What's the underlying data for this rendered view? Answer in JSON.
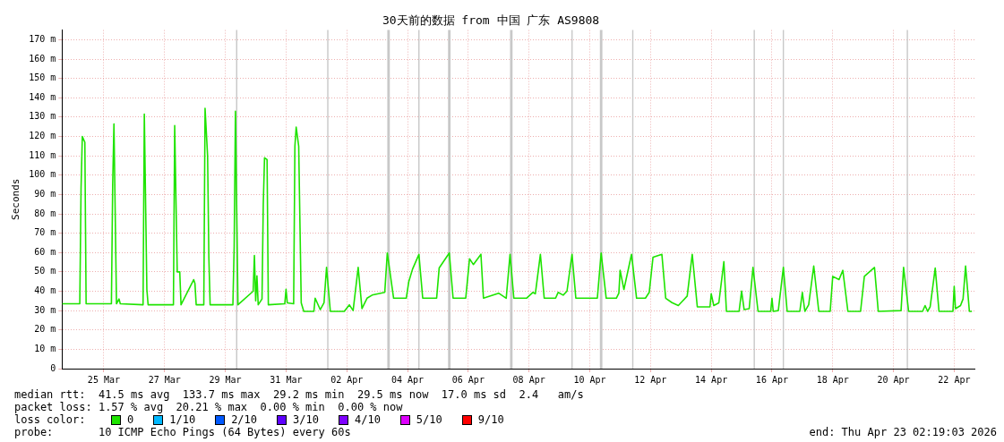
{
  "chart_data": {
    "type": "line",
    "title": "30天前的数据 from 中国 广东 AS9808",
    "ylabel": "Seconds",
    "legend_title": "loss color:",
    "legend": "bottom",
    "grid": true,
    "marker": "none",
    "line_style": "solid",
    "x": [
      "2026-03-23T15:00",
      "2026-03-24T05:00",
      "2026-03-24T06:00",
      "2026-03-24T07:00",
      "2026-03-24T09:00",
      "2026-03-24T10:00",
      "2026-03-25T06:00",
      "2026-03-25T07:00",
      "2026-03-25T08:00",
      "2026-03-25T10:00",
      "2026-03-25T12:00",
      "2026-03-25T13:00",
      "2026-03-26T07:00",
      "2026-03-26T08:00",
      "2026-03-26T10:00",
      "2026-03-26T11:00",
      "2026-03-27T07:00",
      "2026-03-27T08:00",
      "2026-03-27T10:00",
      "2026-03-27T12:00",
      "2026-03-27T13:00",
      "2026-03-27T23:00",
      "2026-03-28T00:00",
      "2026-03-28T01:00",
      "2026-03-28T07:00",
      "2026-03-28T08:00",
      "2026-03-28T10:00",
      "2026-03-28T11:00",
      "2026-03-28T12:00",
      "2026-03-29T06:00",
      "2026-03-29T07:00",
      "2026-03-29T08:00",
      "2026-03-29T10:00",
      "2026-03-29T22:00",
      "2026-03-29T23:00",
      "2026-03-30T00:00",
      "2026-03-30T01:00",
      "2026-03-30T02:00",
      "2026-03-30T05:00",
      "2026-03-30T06:00",
      "2026-03-30T07:00",
      "2026-03-30T09:00",
      "2026-03-30T10:00",
      "2026-03-30T23:00",
      "2026-03-31T00:00",
      "2026-03-31T01:00",
      "2026-03-31T06:00",
      "2026-03-31T07:00",
      "2026-03-31T08:00",
      "2026-03-31T10:00",
      "2026-03-31T12:00",
      "2026-03-31T14:00",
      "2026-03-31T22:00",
      "2026-03-31T23:00",
      "2026-04-01T03:00",
      "2026-04-01T06:00",
      "2026-04-01T08:00",
      "2026-04-01T11:00",
      "2026-04-01T22:00",
      "2026-04-02T02:00",
      "2026-04-02T05:00",
      "2026-04-02T09:00",
      "2026-04-02T12:00",
      "2026-04-02T16:00",
      "2026-04-02T20:00",
      "2026-04-03T06:00",
      "2026-04-03T08:00",
      "2026-04-03T13:00",
      "2026-04-03T23:00",
      "2026-04-04T01:00",
      "2026-04-04T04:00",
      "2026-04-04T09:00",
      "2026-04-04T12:00",
      "2026-04-04T23:00",
      "2026-04-05T01:00",
      "2026-04-05T09:00",
      "2026-04-05T12:00",
      "2026-04-05T22:00",
      "2026-04-06T01:00",
      "2026-04-06T04:00",
      "2026-04-06T10:00",
      "2026-04-06T12:00",
      "2026-04-07T00:00",
      "2026-04-07T06:00",
      "2026-04-07T09:00",
      "2026-04-07T12:00",
      "2026-04-07T22:00",
      "2026-04-08T03:00",
      "2026-04-08T05:00",
      "2026-04-08T09:00",
      "2026-04-08T12:00",
      "2026-04-08T21:00",
      "2026-04-08T23:00",
      "2026-04-09T03:00",
      "2026-04-09T06:00",
      "2026-04-09T10:00",
      "2026-04-09T13:00",
      "2026-04-10T06:00",
      "2026-04-10T09:00",
      "2026-04-10T13:00",
      "2026-04-10T21:00",
      "2026-04-10T23:00",
      "2026-04-11T00:00",
      "2026-04-11T03:00",
      "2026-04-11T09:00",
      "2026-04-11T13:00",
      "2026-04-11T20:00",
      "2026-04-11T23:00",
      "2026-04-12T02:00",
      "2026-04-12T09:00",
      "2026-04-12T12:00",
      "2026-04-12T17:00",
      "2026-04-12T22:00",
      "2026-04-13T05:00",
      "2026-04-13T09:00",
      "2026-04-13T13:00",
      "2026-04-13T23:00",
      "2026-04-14T00:00",
      "2026-04-14T02:00",
      "2026-04-14T06:00",
      "2026-04-14T10:00",
      "2026-04-14T12:00",
      "2026-04-14T22:00",
      "2026-04-15T00:00",
      "2026-04-15T02:00",
      "2026-04-15T06:00",
      "2026-04-15T09:00",
      "2026-04-15T13:00",
      "2026-04-15T23:00",
      "2026-04-16T00:00",
      "2026-04-16T01:00",
      "2026-04-16T05:00",
      "2026-04-16T09:00",
      "2026-04-16T12:00",
      "2026-04-16T22:00",
      "2026-04-17T00:00",
      "2026-04-17T02:00",
      "2026-04-17T05:00",
      "2026-04-17T09:00",
      "2026-04-17T13:00",
      "2026-04-17T22:00",
      "2026-04-18T00:00",
      "2026-04-18T05:00",
      "2026-04-18T08:00",
      "2026-04-18T12:00",
      "2026-04-18T22:00",
      "2026-04-19T01:00",
      "2026-04-19T09:00",
      "2026-04-19T12:00",
      "2026-04-20T06:00",
      "2026-04-20T08:00",
      "2026-04-20T12:00",
      "2026-04-20T23:00",
      "2026-04-21T01:00",
      "2026-04-21T03:00",
      "2026-04-21T05:00",
      "2026-04-21T09:00",
      "2026-04-21T12:00",
      "2026-04-21T23:00",
      "2026-04-22T00:00",
      "2026-04-22T01:00",
      "2026-04-22T05:00",
      "2026-04-22T07:00",
      "2026-04-22T09:00",
      "2026-04-22T12:00",
      "2026-04-22T14:00"
    ],
    "series": [
      {
        "name": "0",
        "color": "#1ee400",
        "values": [
          33.5,
          33.5,
          93,
          120,
          117,
          33.5,
          33.5,
          95,
          126.5,
          33.5,
          36,
          33.5,
          33,
          131.6,
          41,
          33,
          33,
          125.6,
          50,
          50,
          33,
          46,
          44,
          33,
          33,
          134.6,
          110,
          57.6,
          33,
          33,
          63,
          133,
          33,
          40,
          58.5,
          35,
          48,
          33,
          36,
          85,
          109,
          108,
          33,
          33.5,
          41,
          34,
          33.5,
          115,
          124.8,
          115,
          34,
          29.6,
          29.6,
          36.4,
          30.5,
          34,
          52.3,
          29.6,
          29.6,
          33,
          30,
          52.3,
          31,
          36.4,
          38,
          39.4,
          59.8,
          36.4,
          36.4,
          45,
          51.5,
          59,
          36.4,
          36.4,
          52,
          59.8,
          36.4,
          36.4,
          56.8,
          53.8,
          59.1,
          36.4,
          39,
          36.4,
          59.1,
          36.4,
          36.4,
          39.4,
          38.7,
          59.1,
          36.4,
          36.4,
          39.4,
          38,
          40,
          59.1,
          36.4,
          36.4,
          59.8,
          36.4,
          36.4,
          39,
          50.8,
          40.9,
          59.1,
          36.4,
          36.4,
          39.4,
          57.6,
          59.1,
          36.4,
          34.1,
          32.6,
          37.5,
          59.1,
          31.9,
          31.9,
          38.7,
          32.6,
          34,
          55.3,
          29.6,
          29.6,
          40.1,
          30.5,
          31,
          52.3,
          29.6,
          29.6,
          36.4,
          29.6,
          30,
          52.3,
          29.6,
          29.6,
          39.4,
          29.6,
          33,
          53,
          29.6,
          29.6,
          47.7,
          46,
          50.8,
          29.6,
          29.6,
          47.7,
          52.3,
          29.6,
          30,
          52.3,
          29.6,
          29.6,
          32.6,
          29.6,
          32,
          52,
          29.6,
          29.6,
          42.5,
          31,
          32.6,
          36,
          53,
          29.6,
          29.6
        ]
      },
      {
        "name": "1/10",
        "color": "#00b8ff",
        "values": [
          null,
          null,
          null,
          null,
          null,
          null,
          null,
          null,
          null,
          null,
          null,
          null,
          null,
          null,
          null,
          null,
          null,
          null,
          null,
          null,
          null,
          null,
          null,
          null,
          null,
          null,
          null,
          null,
          null,
          null,
          null,
          null,
          null,
          null,
          null,
          null,
          null,
          null,
          null,
          null,
          null,
          null,
          null,
          null,
          null,
          null,
          null,
          null,
          null,
          null,
          null,
          null,
          null,
          null,
          null,
          null,
          null,
          null,
          null,
          null,
          null,
          null,
          null,
          null,
          null,
          null,
          null,
          null,
          null,
          null,
          null,
          null,
          null,
          null,
          null,
          null,
          null,
          null,
          null,
          null,
          null,
          null,
          null,
          null,
          null,
          null,
          null,
          null,
          null,
          null,
          null,
          null,
          null,
          null,
          null,
          null,
          null,
          null,
          null,
          null,
          null,
          null,
          null,
          null,
          null,
          null,
          null,
          null,
          null,
          null,
          null,
          null,
          null,
          null,
          null,
          null,
          null,
          null,
          null,
          null,
          null,
          null,
          null,
          null,
          null,
          null,
          null,
          null,
          null,
          null,
          null,
          null,
          null,
          null,
          null,
          null,
          null,
          null,
          null,
          null,
          null,
          null,
          null,
          null,
          null,
          null,
          null,
          null,
          null,
          null,
          null,
          null,
          null,
          null,
          null,
          null,
          null,
          null,
          null,
          null,
          null,
          null,
          null,
          null,
          null,
          null
        ]
      },
      {
        "name": "2/10",
        "color": "#0059ff",
        "values": [
          null,
          null,
          null,
          null,
          null,
          null,
          null,
          null,
          null,
          null,
          null,
          null,
          null,
          null,
          null,
          null,
          null,
          null,
          null,
          null,
          null,
          null,
          null,
          null,
          null,
          null,
          null,
          null,
          null,
          null,
          null,
          null,
          null,
          null,
          null,
          null,
          null,
          null,
          null,
          null,
          null,
          null,
          null,
          null,
          null,
          null,
          null,
          null,
          null,
          null,
          null,
          null,
          null,
          null,
          null,
          null,
          null,
          null,
          null,
          null,
          null,
          null,
          null,
          null,
          null,
          null,
          null,
          null,
          null,
          null,
          null,
          null,
          null,
          null,
          null,
          null,
          null,
          null,
          null,
          null,
          null,
          null,
          null,
          null,
          null,
          null,
          null,
          null,
          null,
          null,
          null,
          null,
          null,
          null,
          null,
          null,
          null,
          null,
          null,
          null,
          null,
          null,
          null,
          null,
          null,
          null,
          null,
          null,
          null,
          null,
          null,
          null,
          null,
          null,
          null,
          null,
          null,
          null,
          null,
          null,
          null,
          null,
          null,
          null,
          null,
          null,
          null,
          null,
          null,
          null,
          null,
          null,
          null,
          null,
          null,
          null,
          null,
          null,
          null,
          null,
          null,
          null,
          null,
          null,
          null,
          null,
          null,
          null,
          null,
          null,
          null,
          null,
          null,
          null,
          null,
          null,
          null,
          null,
          null,
          null,
          null,
          null,
          null,
          null,
          null,
          null
        ]
      },
      {
        "name": "3/10",
        "color": "#5e00ff",
        "values": [
          null,
          null,
          null,
          null,
          null,
          null,
          null,
          null,
          null,
          null,
          null,
          null,
          null,
          null,
          null,
          null,
          null,
          null,
          null,
          null,
          null,
          null,
          null,
          null,
          null,
          null,
          null,
          null,
          null,
          null,
          null,
          null,
          null,
          null,
          null,
          null,
          null,
          null,
          null,
          null,
          null,
          null,
          null,
          null,
          null,
          null,
          null,
          null,
          null,
          null,
          null,
          null,
          null,
          null,
          null,
          null,
          null,
          null,
          null,
          null,
          null,
          null,
          null,
          null,
          null,
          null,
          null,
          null,
          null,
          null,
          null,
          null,
          null,
          null,
          null,
          null,
          null,
          null,
          null,
          null,
          null,
          null,
          null,
          null,
          null,
          null,
          null,
          null,
          null,
          null,
          null,
          null,
          null,
          null,
          null,
          null,
          null,
          null,
          null,
          null,
          null,
          null,
          null,
          null,
          null,
          null,
          null,
          null,
          null,
          null,
          null,
          null,
          null,
          null,
          null,
          null,
          null,
          null,
          null,
          null,
          null,
          null,
          null,
          null,
          null,
          null,
          null,
          null,
          null,
          null,
          null,
          null,
          null,
          null,
          null,
          null,
          null,
          null,
          null,
          null,
          null,
          null,
          null,
          null,
          null,
          null,
          null,
          null,
          null,
          null,
          null,
          null,
          null,
          null,
          null,
          null,
          null,
          null,
          null,
          null,
          null,
          null,
          null,
          null,
          null,
          null
        ]
      },
      {
        "name": "4/10",
        "color": "#7e00ff",
        "values": [
          null,
          null,
          null,
          null,
          null,
          null,
          null,
          null,
          null,
          null,
          null,
          null,
          null,
          null,
          null,
          null,
          null,
          null,
          null,
          null,
          null,
          null,
          null,
          null,
          null,
          null,
          null,
          null,
          null,
          null,
          null,
          null,
          null,
          null,
          null,
          null,
          null,
          null,
          null,
          null,
          null,
          null,
          null,
          null,
          null,
          null,
          null,
          null,
          null,
          null,
          null,
          null,
          null,
          null,
          null,
          null,
          null,
          null,
          null,
          null,
          null,
          null,
          null,
          null,
          null,
          null,
          null,
          null,
          null,
          null,
          null,
          null,
          null,
          null,
          null,
          null,
          null,
          null,
          null,
          null,
          null,
          null,
          null,
          null,
          null,
          null,
          null,
          null,
          null,
          null,
          null,
          null,
          null,
          null,
          null,
          null,
          null,
          null,
          null,
          null,
          null,
          null,
          null,
          null,
          null,
          null,
          null,
          null,
          null,
          null,
          null,
          null,
          null,
          null,
          null,
          null,
          null,
          null,
          null,
          null,
          null,
          null,
          null,
          null,
          null,
          null,
          null,
          null,
          null,
          null,
          null,
          null,
          null,
          null,
          null,
          null,
          null,
          null,
          null,
          null,
          null,
          null,
          null,
          null,
          null,
          null,
          null,
          null,
          null,
          null,
          null,
          null,
          null,
          null,
          null,
          null,
          null,
          null,
          null,
          null,
          null,
          null,
          null,
          null,
          null,
          null
        ]
      },
      {
        "name": "5/10",
        "color": "#dd00ff",
        "values": [
          null,
          null,
          null,
          null,
          null,
          null,
          null,
          null,
          null,
          null,
          null,
          null,
          null,
          null,
          null,
          null,
          null,
          null,
          null,
          null,
          null,
          null,
          null,
          null,
          null,
          null,
          null,
          null,
          null,
          null,
          null,
          null,
          null,
          null,
          null,
          null,
          null,
          null,
          null,
          null,
          null,
          null,
          null,
          null,
          null,
          null,
          null,
          null,
          null,
          null,
          null,
          null,
          null,
          null,
          null,
          null,
          null,
          null,
          null,
          null,
          null,
          null,
          null,
          null,
          null,
          null,
          null,
          null,
          null,
          null,
          null,
          null,
          null,
          null,
          null,
          null,
          null,
          null,
          null,
          null,
          null,
          null,
          null,
          null,
          null,
          null,
          null,
          null,
          null,
          null,
          null,
          null,
          null,
          null,
          null,
          null,
          null,
          null,
          null,
          null,
          null,
          null,
          null,
          null,
          null,
          null,
          null,
          null,
          null,
          null,
          null,
          null,
          null,
          null,
          null,
          null,
          null,
          null,
          null,
          null,
          null,
          null,
          null,
          null,
          null,
          null,
          null,
          null,
          null,
          null,
          null,
          null,
          null,
          null,
          null,
          null,
          null,
          null,
          null,
          null,
          null,
          null,
          null,
          null,
          null,
          null,
          null,
          null,
          null,
          null,
          null,
          null,
          null,
          null,
          null,
          null,
          null,
          null,
          null,
          null,
          null,
          null,
          null,
          null,
          null,
          null
        ]
      },
      {
        "name": "9/10",
        "color": "#ff0000",
        "values": [
          null,
          null,
          null,
          null,
          null,
          null,
          null,
          null,
          null,
          null,
          null,
          null,
          null,
          null,
          null,
          null,
          null,
          null,
          null,
          null,
          null,
          null,
          null,
          null,
          null,
          null,
          null,
          null,
          null,
          null,
          null,
          null,
          null,
          null,
          null,
          null,
          null,
          null,
          null,
          null,
          null,
          null,
          null,
          null,
          null,
          null,
          null,
          null,
          null,
          null,
          null,
          null,
          null,
          null,
          null,
          null,
          null,
          null,
          null,
          null,
          null,
          null,
          null,
          null,
          null,
          null,
          null,
          null,
          null,
          null,
          null,
          null,
          null,
          null,
          null,
          null,
          null,
          null,
          null,
          null,
          null,
          null,
          null,
          null,
          null,
          null,
          null,
          null,
          null,
          null,
          null,
          null,
          null,
          null,
          null,
          null,
          null,
          null,
          null,
          null,
          null,
          null,
          null,
          null,
          null,
          null,
          null,
          null,
          null,
          null,
          null,
          null,
          null,
          null,
          null,
          null,
          null,
          null,
          null,
          null,
          null,
          null,
          null,
          null,
          null,
          null,
          null,
          null,
          null,
          null,
          null,
          null,
          null,
          null,
          null,
          null,
          null,
          null,
          null,
          null,
          null,
          null,
          null,
          null,
          null,
          null,
          null,
          null,
          null,
          null,
          null,
          null,
          null,
          null,
          null,
          null,
          null,
          null,
          null,
          null,
          null,
          null,
          null,
          null,
          null,
          null
        ]
      }
    ],
    "bands": [
      {
        "axis": "x",
        "from": "2026-03-29T08:30",
        "to": "2026-03-29T09:30",
        "color": "#c8c8c8"
      },
      {
        "axis": "x",
        "from": "2026-04-01T08:30",
        "to": "2026-04-01T09:30",
        "color": "#c8c8c8"
      },
      {
        "axis": "x",
        "from": "2026-04-03T08:00",
        "to": "2026-04-03T10:00",
        "color": "#c8c8c8"
      },
      {
        "axis": "x",
        "from": "2026-04-04T08:30",
        "to": "2026-04-04T09:30",
        "color": "#c8c8c8"
      },
      {
        "axis": "x",
        "from": "2026-04-05T08:00",
        "to": "2026-04-05T10:00",
        "color": "#c8c8c8"
      },
      {
        "axis": "x",
        "from": "2026-04-07T09:00",
        "to": "2026-04-07T11:00",
        "color": "#c8c8c8"
      },
      {
        "axis": "x",
        "from": "2026-04-09T09:30",
        "to": "2026-04-09T10:30",
        "color": "#c8c8c8"
      },
      {
        "axis": "x",
        "from": "2026-04-10T08:00",
        "to": "2026-04-10T10:00",
        "color": "#c8c8c8"
      },
      {
        "axis": "x",
        "from": "2026-04-11T09:30",
        "to": "2026-04-11T10:30",
        "color": "#c8c8c8"
      },
      {
        "axis": "x",
        "from": "2026-04-15T09:30",
        "to": "2026-04-15T10:30",
        "color": "#c8c8c8"
      },
      {
        "axis": "x",
        "from": "2026-04-16T08:30",
        "to": "2026-04-16T09:30",
        "color": "#c8c8c8"
      },
      {
        "axis": "x",
        "from": "2026-04-20T10:30",
        "to": "2026-04-20T11:30",
        "color": "#c8c8c8"
      }
    ],
    "xlim": [
      "2026-03-23T15:00",
      "2026-04-22T16:00"
    ],
    "xticks": [
      {
        "value": "2026-03-25",
        "label": "25 Mar"
      },
      {
        "value": "2026-03-27",
        "label": "27 Mar"
      },
      {
        "value": "2026-03-29",
        "label": "29 Mar"
      },
      {
        "value": "2026-03-31",
        "label": "31 Mar"
      },
      {
        "value": "2026-04-02",
        "label": "02 Apr"
      },
      {
        "value": "2026-04-04",
        "label": "04 Apr"
      },
      {
        "value": "2026-04-06",
        "label": "06 Apr"
      },
      {
        "value": "2026-04-08",
        "label": "08 Apr"
      },
      {
        "value": "2026-04-10",
        "label": "10 Apr"
      },
      {
        "value": "2026-04-12",
        "label": "12 Apr"
      },
      {
        "value": "2026-04-14",
        "label": "14 Apr"
      },
      {
        "value": "2026-04-16",
        "label": "16 Apr"
      },
      {
        "value": "2026-04-18",
        "label": "18 Apr"
      },
      {
        "value": "2026-04-20",
        "label": "20 Apr"
      },
      {
        "value": "2026-04-22",
        "label": "22 Apr"
      }
    ],
    "ylim": [
      0,
      175
    ],
    "yticks": [
      0,
      {
        "value": 10,
        "label": "10 m"
      },
      {
        "value": 20,
        "label": "20 m"
      },
      {
        "value": 30,
        "label": "30 m"
      },
      {
        "value": 40,
        "label": "40 m"
      },
      {
        "value": 50,
        "label": "50 m"
      },
      {
        "value": 60,
        "label": "60 m"
      },
      {
        "value": 70,
        "label": "70 m"
      },
      {
        "value": 80,
        "label": "80 m"
      },
      {
        "value": 90,
        "label": "90 m"
      },
      {
        "value": 100,
        "label": "100 m"
      },
      {
        "value": 110,
        "label": "110 m"
      },
      {
        "value": 120,
        "label": "120 m"
      },
      {
        "value": 130,
        "label": "130 m"
      },
      {
        "value": 140,
        "label": "140 m"
      },
      {
        "value": 150,
        "label": "150 m"
      },
      {
        "value": 160,
        "label": "160 m"
      },
      {
        "value": 170,
        "label": "170 m"
      }
    ],
    "annotations": [
      "median rtt:  41.5 ms avg  133.7 ms max  29.2 ms min  29.5 ms now  17.0 ms sd  2.4   am/s",
      "packet loss: 1.57 % avg  20.21 % max  0.00 % min  0.00 % now",
      "probe:       10 ICMP Echo Pings (64 Bytes) every 60s",
      "end: Thu Apr 23 02:19:03 2026"
    ]
  }
}
